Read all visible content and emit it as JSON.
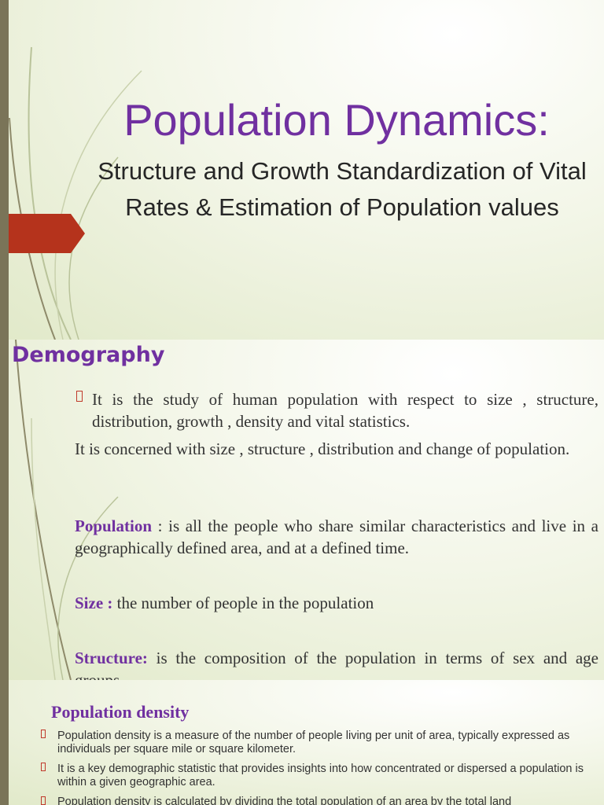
{
  "slides": [
    {
      "title": "Population Dynamics:",
      "subtitle": "Structure and Growth Standardization of Vital Rates & Estimation of Population values"
    },
    {
      "title": "Demography",
      "bullets": [
        "It is the study of human population with respect to size , structure, distribution,  growth , density and vital statistics."
      ],
      "intro": "It is concerned with size , structure , distribution and change of population.",
      "definitions": [
        {
          "term": "Population",
          "text": " : is all the people who share similar characteristics and live in a geographically defined area, and at a defined time."
        },
        {
          "term": "Size :",
          "text": " the number of people in the population"
        },
        {
          "term": "Structure:",
          "text": "  is the composition of the population in terms of sex and age groups."
        }
      ]
    },
    {
      "title": "Population density",
      "bullets": [
        "Population density is a measure of the number of people living per unit of area, typically expressed as individuals per square mile or square kilometer.",
        "It is a key demographic statistic that provides insights into how concentrated or dispersed a population is within a given geographic area.",
        " Population density is calculated by dividing the total population of an area by the total land"
      ]
    }
  ]
}
